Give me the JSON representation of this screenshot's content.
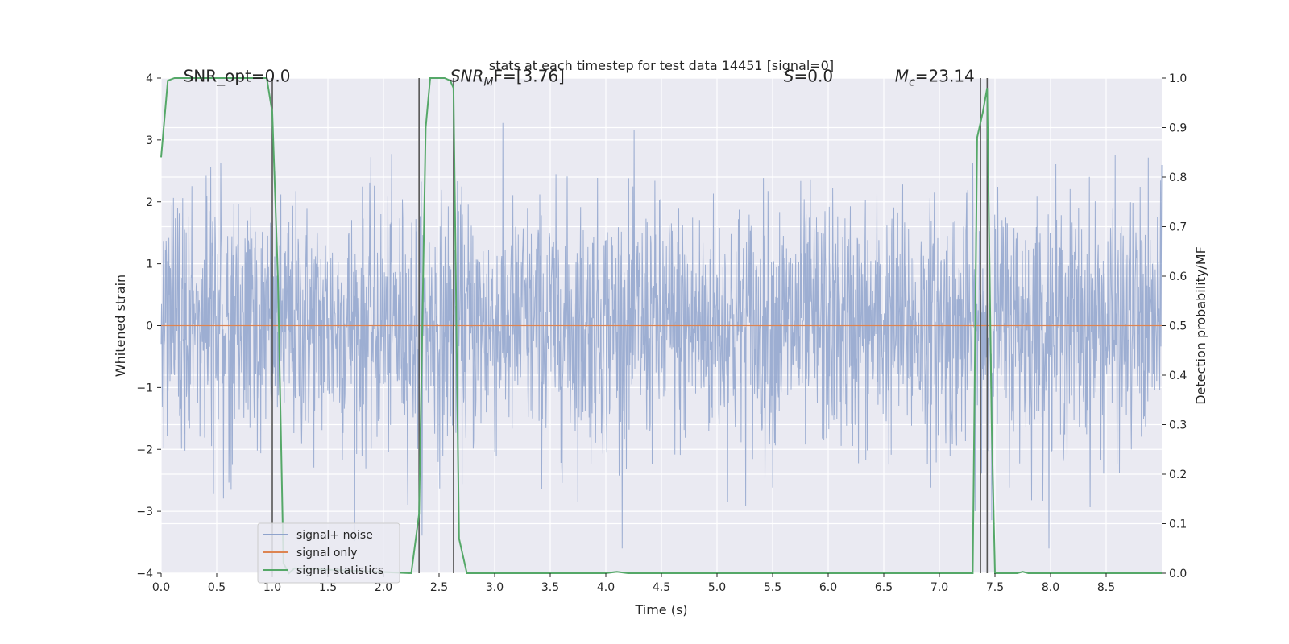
{
  "chart_data": {
    "type": "line",
    "title": "stats at each timestep for test data 14451 [signal=0]",
    "xlabel": "Time (s)",
    "ylabel": "Whitened strain",
    "ylabel_right": "Detection probability/MF",
    "xlim": [
      0.0,
      9.0
    ],
    "ylim": [
      -4.0,
      4.0
    ],
    "ylim_right": [
      0.0,
      1.0
    ],
    "x_ticks": [
      "0.0",
      "0.5",
      "1.0",
      "1.5",
      "2.0",
      "2.5",
      "3.0",
      "3.5",
      "4.0",
      "4.5",
      "5.0",
      "5.5",
      "6.0",
      "6.5",
      "7.0",
      "7.5",
      "8.0",
      "8.5"
    ],
    "y_ticks": [
      "−4",
      "−3",
      "−2",
      "−1",
      "0",
      "1",
      "2",
      "3",
      "4"
    ],
    "y_ticks_right": [
      "0.0",
      "0.1",
      "0.2",
      "0.3",
      "0.4",
      "0.5",
      "0.6",
      "0.7",
      "0.8",
      "0.9",
      "1.0"
    ],
    "grid": true,
    "legend_position": "lower-left",
    "annotations": [
      {
        "text": "SNR_opt=0.0",
        "x": 0.2,
        "y": 4.1
      },
      {
        "text": "SNR",
        "sub": "M",
        "tail": "F=[3.76]",
        "x": 2.6,
        "y": 4.1,
        "italic": true
      },
      {
        "text": "S",
        "tail": "=0.0",
        "x": 5.6,
        "y": 4.1,
        "italic": true
      },
      {
        "text": "M",
        "sub": "c",
        "tail": "=23.14",
        "x": 6.6,
        "y": 4.1,
        "italic": true
      }
    ],
    "vlines": [
      1.0,
      2.32,
      2.63,
      7.37,
      7.43
    ],
    "series": [
      {
        "name": "signal+ noise",
        "color": "#8fa3cc",
        "axis": "left",
        "kind": "noise",
        "amplitude_range": [
          -3.6,
          3.8
        ],
        "sigma": 1.0
      },
      {
        "name": "signal only",
        "color": "#dd8452",
        "axis": "left",
        "x": [
          0.0,
          9.0
        ],
        "y": [
          0.0,
          0.0
        ]
      },
      {
        "name": "signal statistics",
        "color": "#55a868",
        "axis": "right",
        "x": [
          0.0,
          0.06,
          0.12,
          0.9,
          0.95,
          1.0,
          1.05,
          1.1,
          1.15,
          1.2,
          2.25,
          2.32,
          2.38,
          2.42,
          2.48,
          2.55,
          2.6,
          2.63,
          2.68,
          2.75,
          4.0,
          4.1,
          4.2,
          7.3,
          7.34,
          7.39,
          7.43,
          7.47,
          7.5,
          7.7,
          7.75,
          7.8,
          9.0
        ],
        "y": [
          0.84,
          0.995,
          1.0,
          1.0,
          1.0,
          0.93,
          0.6,
          0.02,
          0.0,
          0.01,
          0.0,
          0.12,
          0.9,
          1.0,
          1.0,
          1.0,
          0.995,
          0.98,
          0.07,
          0.0,
          0.0,
          0.003,
          0.0,
          0.0,
          0.88,
          0.93,
          0.98,
          0.3,
          0.0,
          0.0,
          0.003,
          0.0,
          0.0
        ]
      }
    ]
  }
}
